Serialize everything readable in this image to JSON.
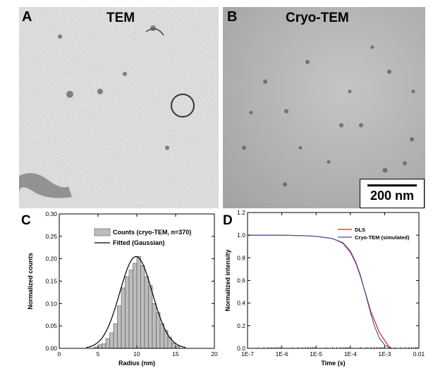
{
  "panels": {
    "A": {
      "letter": "A",
      "title": "TEM"
    },
    "B": {
      "letter": "B",
      "title": "Cryo-TEM",
      "scalebar_label": "200 nm"
    },
    "C": {
      "letter": "C"
    },
    "D": {
      "letter": "D"
    }
  },
  "chart_data": [
    {
      "panel": "C",
      "type": "bar",
      "xlabel": "Radius (nm)",
      "ylabel": "Normalized counts",
      "xlim": [
        0,
        20
      ],
      "ylim": [
        0,
        0.3
      ],
      "xticks": [
        "0",
        "5",
        "10",
        "15",
        "20"
      ],
      "yticks": [
        "0.00",
        "0.05",
        "0.10",
        "0.15",
        "0.20",
        "0.25",
        "0.30"
      ],
      "legend_position": "top-right",
      "bin_width": 0.5,
      "series": [
        {
          "name": "Counts (cryo-TEM, n=370)",
          "kind": "histogram",
          "x": [
            4.5,
            5.0,
            5.5,
            6.0,
            6.5,
            7.0,
            7.5,
            8.0,
            8.5,
            9.0,
            9.5,
            10.0,
            10.5,
            11.0,
            11.5,
            12.0,
            12.5,
            13.0,
            13.5,
            14.0,
            14.5,
            15.0
          ],
          "values": [
            0.003,
            0.008,
            0.01,
            0.022,
            0.035,
            0.055,
            0.095,
            0.135,
            0.16,
            0.175,
            0.19,
            0.205,
            0.185,
            0.16,
            0.14,
            0.1,
            0.08,
            0.055,
            0.04,
            0.025,
            0.012,
            0.005
          ],
          "color": "#bdbdbd"
        },
        {
          "name": "Fitted (Gaussian)",
          "kind": "gaussian",
          "mean": 9.9,
          "sigma": 2.1,
          "amplitude": 0.205,
          "color": "#000000"
        }
      ]
    },
    {
      "panel": "D",
      "type": "line",
      "xlabel": "Time (s)",
      "ylabel": "Normalized intensity",
      "xscale": "log",
      "xlim": [
        1e-07,
        0.01
      ],
      "ylim": [
        0.0,
        1.2
      ],
      "xticks": [
        "1E-7",
        "1E-6",
        "1E-5",
        "1E-4",
        "1E-3",
        "0.01"
      ],
      "yticks": [
        "0.0",
        "0.2",
        "0.4",
        "0.6",
        "0.8",
        "1.0",
        "1.2"
      ],
      "legend_position": "top-right",
      "series": [
        {
          "name": "DLS",
          "color": "#e41a1c",
          "x": [
            1e-07,
            1e-06,
            5e-06,
            1e-05,
            3e-05,
            6e-05,
            0.0001,
            0.00015,
            0.0002,
            0.0003,
            0.0004,
            0.0005,
            0.0007,
            0.001,
            0.0013,
            0.0016
          ],
          "values": [
            1.0,
            1.0,
            0.995,
            0.99,
            0.97,
            0.93,
            0.85,
            0.74,
            0.63,
            0.45,
            0.32,
            0.25,
            0.14,
            0.07,
            0.02,
            0.0
          ]
        },
        {
          "name": "Cryo-TEM (simulated)",
          "color": "#3355aa",
          "x": [
            1e-07,
            1e-06,
            5e-06,
            1e-05,
            3e-05,
            6e-05,
            0.0001,
            0.00015,
            0.0002,
            0.0003,
            0.0004,
            0.0005,
            0.0007,
            0.001,
            0.0013,
            0.0016
          ],
          "values": [
            1.0,
            1.0,
            0.995,
            0.99,
            0.97,
            0.935,
            0.86,
            0.75,
            0.64,
            0.44,
            0.3,
            0.2,
            0.09,
            0.03,
            0.01,
            0.0
          ]
        }
      ]
    }
  ],
  "colors": {
    "frame": "#000000",
    "panel_letter": "#000000",
    "panel_title": "#000000"
  }
}
